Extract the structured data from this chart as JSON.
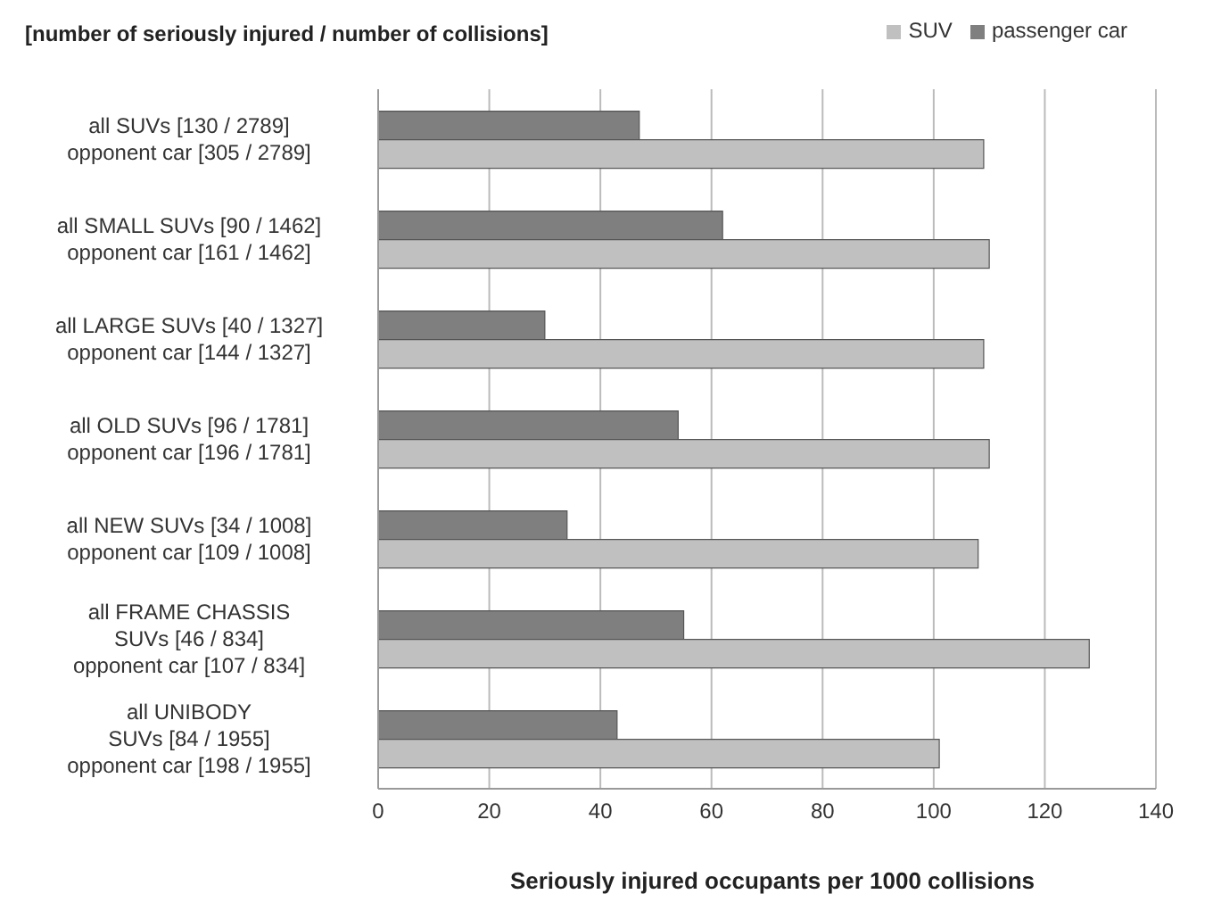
{
  "chart_data": {
    "type": "bar",
    "orientation": "horizontal",
    "title": "[number of seriously injured / number of collisions]",
    "xlabel": "Seriously injured occupants per 1000 collisions",
    "categories": [
      "all SUVs [130 / 2789]\nopponent car [305 / 2789]",
      "all SMALL SUVs [90 / 1462]\nopponent car [161 / 1462]",
      "all LARGE SUVs [40 / 1327]\nopponent car [144 / 1327]",
      "all OLD SUVs [96 / 1781]\nopponent car [196 / 1781]",
      "all NEW SUVs [34 / 1008]\nopponent car [109 / 1008]",
      "all FRAME CHASSIS\nSUVs [46 / 834]\nopponent car [107 / 834]",
      "all UNIBODY\nSUVs [84 / 1955]\nopponent car [198 / 1955]"
    ],
    "series": [
      {
        "name": "passenger car",
        "color": "#7f7f7f",
        "values": [
          47,
          62,
          30,
          54,
          34,
          55,
          43
        ]
      },
      {
        "name": "SUV",
        "color": "#c0c0c0",
        "values": [
          109,
          110,
          109,
          110,
          108,
          128,
          101
        ]
      }
    ],
    "xlim": [
      0,
      140
    ],
    "xticks": [
      0,
      20,
      40,
      60,
      80,
      100,
      120,
      140
    ],
    "grid": "x",
    "legend": "top right"
  }
}
